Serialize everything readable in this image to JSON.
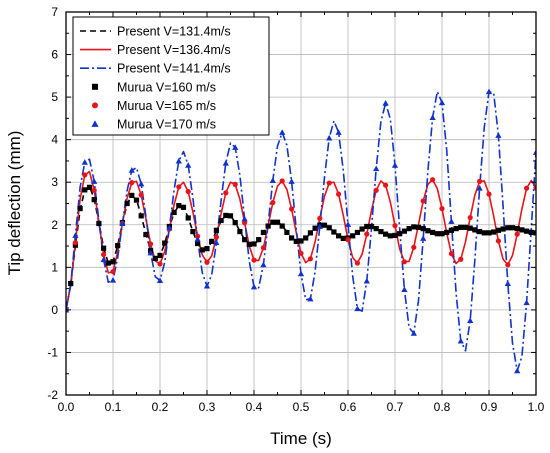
{
  "chart_data": {
    "type": "line",
    "xlabel": "Time (s)",
    "ylabel": "Tip deflection (mm)",
    "xlim": [
      0.0,
      1.0
    ],
    "ylim": [
      -2,
      7
    ],
    "grid": true,
    "legend_position": "top-left",
    "x_ticks": [
      0.0,
      0.1,
      0.2,
      0.3,
      0.4,
      0.5,
      0.6,
      0.7,
      0.8,
      0.9,
      1.0
    ],
    "x_tick_labels": [
      "0.0",
      "0.1",
      "0.2",
      "0.3",
      "0.4",
      "0.5",
      "0.6",
      "0.7",
      "0.8",
      "0.9",
      "1.0"
    ],
    "y_ticks": [
      -2,
      -1,
      0,
      1,
      2,
      3,
      4,
      5,
      6,
      7
    ],
    "y_tick_labels": [
      "-2",
      "-1",
      "0",
      "1",
      "2",
      "3",
      "4",
      "5",
      "6",
      "7"
    ],
    "series": [
      {
        "name": "Present V=131.4m/s",
        "kind": "line",
        "style": "dashed",
        "color": "#000000",
        "x": [
          0.0,
          0.01,
          0.02,
          0.03,
          0.04,
          0.05,
          0.06,
          0.07,
          0.08,
          0.09,
          0.1,
          0.11,
          0.12,
          0.13,
          0.14,
          0.15,
          0.16,
          0.17,
          0.18,
          0.19,
          0.2,
          0.21,
          0.22,
          0.23,
          0.24,
          0.25,
          0.26,
          0.27,
          0.28,
          0.29,
          0.3,
          0.31,
          0.32,
          0.33,
          0.34,
          0.35,
          0.36,
          0.37,
          0.38,
          0.39,
          0.4,
          0.41,
          0.42,
          0.43,
          0.44,
          0.45,
          0.46,
          0.47,
          0.48,
          0.49,
          0.5,
          0.51,
          0.52,
          0.53,
          0.54,
          0.55,
          0.56,
          0.57,
          0.58,
          0.59,
          0.6,
          0.61,
          0.62,
          0.63,
          0.64,
          0.65,
          0.66,
          0.67,
          0.68,
          0.69,
          0.7,
          0.71,
          0.72,
          0.73,
          0.74,
          0.75,
          0.76,
          0.77,
          0.78,
          0.79,
          0.8,
          0.81,
          0.82,
          0.83,
          0.84,
          0.85,
          0.86,
          0.87,
          0.88,
          0.89,
          0.9,
          0.91,
          0.92,
          0.93,
          0.94,
          0.95,
          0.96,
          0.97,
          0.98,
          0.99,
          1.0
        ],
        "y": [
          0.0,
          0.58,
          1.5,
          2.35,
          2.82,
          2.9,
          2.61,
          2.05,
          1.46,
          1.1,
          1.12,
          1.51,
          2.04,
          2.49,
          2.68,
          2.59,
          2.22,
          1.78,
          1.39,
          1.2,
          1.27,
          1.56,
          1.95,
          2.28,
          2.45,
          2.41,
          2.17,
          1.84,
          1.56,
          1.41,
          1.43,
          1.6,
          1.86,
          2.09,
          2.22,
          2.21,
          2.06,
          1.85,
          1.65,
          1.54,
          1.54,
          1.64,
          1.81,
          1.97,
          2.06,
          2.07,
          1.98,
          1.83,
          1.69,
          1.61,
          1.61,
          1.68,
          1.8,
          1.92,
          1.99,
          2.0,
          1.94,
          1.83,
          1.74,
          1.68,
          1.68,
          1.73,
          1.82,
          1.9,
          1.96,
          1.96,
          1.92,
          1.85,
          1.78,
          1.74,
          1.74,
          1.78,
          1.84,
          1.9,
          1.95,
          1.95,
          1.92,
          1.87,
          1.82,
          1.79,
          1.78,
          1.81,
          1.86,
          1.91,
          1.94,
          1.95,
          1.93,
          1.89,
          1.84,
          1.81,
          1.8,
          1.82,
          1.86,
          1.9,
          1.93,
          1.94,
          1.92,
          1.89,
          1.85,
          1.82,
          1.81
        ]
      },
      {
        "name": "Present V=136.4m/s",
        "kind": "line",
        "style": "solid",
        "color": "#e8141b",
        "x": [
          0.0,
          0.01,
          0.02,
          0.03,
          0.04,
          0.05,
          0.06,
          0.07,
          0.08,
          0.09,
          0.1,
          0.11,
          0.12,
          0.13,
          0.14,
          0.15,
          0.16,
          0.17,
          0.18,
          0.19,
          0.2,
          0.21,
          0.22,
          0.23,
          0.24,
          0.25,
          0.26,
          0.27,
          0.28,
          0.29,
          0.3,
          0.31,
          0.32,
          0.33,
          0.34,
          0.35,
          0.36,
          0.37,
          0.38,
          0.39,
          0.4,
          0.41,
          0.42,
          0.43,
          0.44,
          0.45,
          0.46,
          0.47,
          0.48,
          0.49,
          0.5,
          0.51,
          0.52,
          0.53,
          0.54,
          0.55,
          0.56,
          0.57,
          0.58,
          0.59,
          0.6,
          0.61,
          0.62,
          0.63,
          0.64,
          0.65,
          0.66,
          0.67,
          0.68,
          0.69,
          0.7,
          0.71,
          0.72,
          0.73,
          0.74,
          0.75,
          0.76,
          0.77,
          0.78,
          0.79,
          0.8,
          0.81,
          0.82,
          0.83,
          0.84,
          0.85,
          0.86,
          0.87,
          0.88,
          0.89,
          0.9,
          0.91,
          0.92,
          0.93,
          0.94,
          0.95,
          0.96,
          0.97,
          0.98,
          0.99,
          1.0
        ],
        "y": [
          0.0,
          0.58,
          1.58,
          2.6,
          3.17,
          3.25,
          2.81,
          2.05,
          1.3,
          0.87,
          0.9,
          1.36,
          2.03,
          2.62,
          2.99,
          3.02,
          2.7,
          2.14,
          1.55,
          1.15,
          1.08,
          1.37,
          1.9,
          2.47,
          2.89,
          3.0,
          2.78,
          2.3,
          1.73,
          1.29,
          1.12,
          1.27,
          1.71,
          2.26,
          2.75,
          3.0,
          2.95,
          2.6,
          2.05,
          1.5,
          1.17,
          1.16,
          1.46,
          1.98,
          2.52,
          2.91,
          3.03,
          2.83,
          2.37,
          1.81,
          1.33,
          1.11,
          1.2,
          1.6,
          2.15,
          2.67,
          2.98,
          3.0,
          2.72,
          2.22,
          1.65,
          1.23,
          1.1,
          1.31,
          1.78,
          2.34,
          2.81,
          3.03,
          2.93,
          2.54,
          1.98,
          1.43,
          1.13,
          1.14,
          1.47,
          2.01,
          2.56,
          2.95,
          3.06,
          2.85,
          2.38,
          1.81,
          1.32,
          1.09,
          1.19,
          1.6,
          2.17,
          2.7,
          3.02,
          3.03,
          2.72,
          2.2,
          1.62,
          1.19,
          1.06,
          1.28,
          1.78,
          2.37,
          2.86,
          3.04,
          2.87
        ]
      },
      {
        "name": "Present V=141.4m/s",
        "kind": "line",
        "style": "dash-dot",
        "color": "#1133cc",
        "x": [
          0.0,
          0.01,
          0.02,
          0.03,
          0.04,
          0.05,
          0.06,
          0.07,
          0.08,
          0.09,
          0.1,
          0.11,
          0.12,
          0.13,
          0.14,
          0.15,
          0.16,
          0.17,
          0.18,
          0.19,
          0.2,
          0.21,
          0.22,
          0.23,
          0.24,
          0.25,
          0.26,
          0.27,
          0.28,
          0.29,
          0.3,
          0.31,
          0.32,
          0.33,
          0.34,
          0.35,
          0.36,
          0.37,
          0.38,
          0.39,
          0.4,
          0.41,
          0.42,
          0.43,
          0.44,
          0.45,
          0.46,
          0.47,
          0.48,
          0.49,
          0.5,
          0.51,
          0.52,
          0.53,
          0.54,
          0.55,
          0.56,
          0.57,
          0.58,
          0.59,
          0.6,
          0.61,
          0.62,
          0.63,
          0.64,
          0.65,
          0.66,
          0.67,
          0.68,
          0.69,
          0.7,
          0.71,
          0.72,
          0.73,
          0.74,
          0.75,
          0.76,
          0.77,
          0.78,
          0.79,
          0.8,
          0.81,
          0.82,
          0.83,
          0.84,
          0.85,
          0.86,
          0.87,
          0.88,
          0.89,
          0.9,
          0.91,
          0.92,
          0.93,
          0.94,
          0.95,
          0.96,
          0.97,
          0.98,
          0.99,
          1.0
        ],
        "y": [
          0.0,
          0.6,
          1.75,
          2.88,
          3.47,
          3.54,
          3.02,
          2.1,
          1.18,
          0.65,
          0.7,
          1.23,
          2.03,
          2.8,
          3.28,
          3.34,
          2.96,
          2.2,
          1.34,
          0.78,
          0.69,
          1.12,
          1.93,
          2.82,
          3.5,
          3.72,
          3.4,
          2.63,
          1.66,
          0.87,
          0.56,
          0.82,
          1.58,
          2.57,
          3.45,
          3.92,
          3.82,
          3.16,
          2.14,
          1.14,
          0.54,
          0.52,
          1.06,
          2.01,
          3.04,
          3.85,
          4.17,
          3.87,
          3.02,
          1.89,
          0.85,
          0.24,
          0.26,
          0.9,
          1.96,
          3.12,
          4.04,
          4.44,
          4.17,
          3.27,
          2.01,
          0.79,
          0.03,
          -0.03,
          0.68,
          1.92,
          3.32,
          4.42,
          4.86,
          4.49,
          3.4,
          1.9,
          0.48,
          -0.42,
          -0.55,
          0.22,
          1.68,
          3.26,
          4.52,
          5.13,
          4.87,
          3.76,
          2.08,
          0.39,
          -0.73,
          -0.96,
          -0.25,
          1.19,
          2.86,
          4.3,
          5.13,
          5.09,
          4.1,
          2.43,
          0.62,
          -0.78,
          -1.43,
          -1.1,
          0.17,
          1.92,
          3.7
        ]
      },
      {
        "name": "Murua   V=160  m/s",
        "kind": "markers",
        "marker": "square",
        "color": "#000000",
        "x": [
          0.0,
          0.01,
          0.02,
          0.03,
          0.04,
          0.05,
          0.06,
          0.07,
          0.08,
          0.09,
          0.1,
          0.11,
          0.12,
          0.13,
          0.14,
          0.15,
          0.16,
          0.17,
          0.18,
          0.19,
          0.2,
          0.21,
          0.22,
          0.23,
          0.24,
          0.25,
          0.26,
          0.27,
          0.28,
          0.29,
          0.3,
          0.31,
          0.32,
          0.33,
          0.34,
          0.35,
          0.36,
          0.37,
          0.38,
          0.39,
          0.4,
          0.41,
          0.42,
          0.43,
          0.44,
          0.45,
          0.46,
          0.47,
          0.48,
          0.49,
          0.5,
          0.51,
          0.52,
          0.53,
          0.54,
          0.55,
          0.56,
          0.57,
          0.58,
          0.59,
          0.6,
          0.61,
          0.62,
          0.63,
          0.64,
          0.65,
          0.66,
          0.67,
          0.68,
          0.69,
          0.7,
          0.71,
          0.72,
          0.73,
          0.74,
          0.75,
          0.76,
          0.77,
          0.78,
          0.79,
          0.8,
          0.81,
          0.82,
          0.83,
          0.84,
          0.85,
          0.86,
          0.87,
          0.88,
          0.89,
          0.9,
          0.91,
          0.92,
          0.93,
          0.94,
          0.95,
          0.96,
          0.97,
          0.98,
          0.99,
          1.0
        ],
        "y": [
          0.0,
          0.62,
          1.52,
          2.38,
          2.82,
          2.88,
          2.59,
          2.03,
          1.45,
          1.1,
          1.13,
          1.51,
          2.05,
          2.5,
          2.69,
          2.58,
          2.21,
          1.77,
          1.39,
          1.21,
          1.28,
          1.57,
          1.96,
          2.29,
          2.45,
          2.41,
          2.16,
          1.84,
          1.56,
          1.41,
          1.44,
          1.61,
          1.87,
          2.1,
          2.22,
          2.21,
          2.05,
          1.84,
          1.65,
          1.54,
          1.55,
          1.65,
          1.82,
          1.97,
          2.06,
          2.06,
          1.97,
          1.82,
          1.69,
          1.61,
          1.62,
          1.69,
          1.81,
          1.92,
          1.99,
          1.99,
          1.93,
          1.83,
          1.74,
          1.68,
          1.69,
          1.74,
          1.82,
          1.9,
          1.96,
          1.96,
          1.91,
          1.84,
          1.78,
          1.74,
          1.75,
          1.79,
          1.85,
          1.91,
          1.95,
          1.94,
          1.91,
          1.86,
          1.82,
          1.79,
          1.79,
          1.82,
          1.87,
          1.91,
          1.94,
          1.94,
          1.92,
          1.88,
          1.84,
          1.81,
          1.81,
          1.83,
          1.87,
          1.9,
          1.93,
          1.93,
          1.91,
          1.88,
          1.85,
          1.82,
          1.81
        ]
      },
      {
        "name": "Murua   V=165  m/s",
        "kind": "markers",
        "marker": "circle",
        "color": "#e8141b",
        "x": [
          0.0,
          0.02,
          0.04,
          0.06,
          0.08,
          0.1,
          0.12,
          0.14,
          0.16,
          0.18,
          0.2,
          0.22,
          0.24,
          0.26,
          0.28,
          0.3,
          0.32,
          0.34,
          0.36,
          0.38,
          0.4,
          0.42,
          0.44,
          0.46,
          0.48,
          0.5,
          0.52,
          0.54,
          0.56,
          0.58,
          0.6,
          0.62,
          0.64,
          0.66,
          0.68,
          0.7,
          0.72,
          0.74,
          0.76,
          0.78,
          0.8,
          0.82,
          0.84,
          0.86,
          0.88,
          0.9,
          0.92,
          0.94,
          0.96,
          0.98,
          1.0
        ],
        "y": [
          0.0,
          1.58,
          3.17,
          2.81,
          1.3,
          0.9,
          2.03,
          2.99,
          2.7,
          1.55,
          1.08,
          1.9,
          2.89,
          2.78,
          1.73,
          1.12,
          1.71,
          2.75,
          2.95,
          2.05,
          1.17,
          1.46,
          2.52,
          3.03,
          2.37,
          1.33,
          1.2,
          2.15,
          2.98,
          2.72,
          1.65,
          1.1,
          1.78,
          2.81,
          2.93,
          1.98,
          1.13,
          1.47,
          2.56,
          3.06,
          2.38,
          1.32,
          1.19,
          2.17,
          3.02,
          2.72,
          1.62,
          1.06,
          1.78,
          2.86,
          2.87
        ]
      },
      {
        "name": "Murua   V=170  m/s",
        "kind": "markers",
        "marker": "triangle",
        "color": "#1133cc",
        "x": [
          0.0,
          0.02,
          0.04,
          0.06,
          0.08,
          0.1,
          0.12,
          0.14,
          0.16,
          0.18,
          0.2,
          0.22,
          0.24,
          0.26,
          0.28,
          0.3,
          0.32,
          0.34,
          0.36,
          0.38,
          0.4,
          0.42,
          0.44,
          0.46,
          0.48,
          0.5,
          0.52,
          0.54,
          0.56,
          0.58,
          0.6,
          0.62,
          0.64,
          0.66,
          0.68,
          0.7,
          0.72,
          0.74,
          0.76,
          0.78,
          0.8,
          0.82,
          0.84,
          0.86,
          0.88,
          0.9,
          0.92,
          0.94,
          0.96,
          0.98,
          1.0
        ],
        "y": [
          0.0,
          1.75,
          3.47,
          3.02,
          1.18,
          0.7,
          2.03,
          3.28,
          2.96,
          1.34,
          0.69,
          1.93,
          3.5,
          3.4,
          1.66,
          0.56,
          1.58,
          3.45,
          3.82,
          2.14,
          0.54,
          1.06,
          3.04,
          4.17,
          3.02,
          0.85,
          0.26,
          1.96,
          4.04,
          4.17,
          2.01,
          0.03,
          0.68,
          3.32,
          4.86,
          3.4,
          0.48,
          -0.55,
          1.68,
          4.52,
          4.87,
          2.08,
          -0.73,
          -0.25,
          2.86,
          5.13,
          4.1,
          0.62,
          -1.43,
          0.17,
          3.7
        ]
      }
    ]
  }
}
